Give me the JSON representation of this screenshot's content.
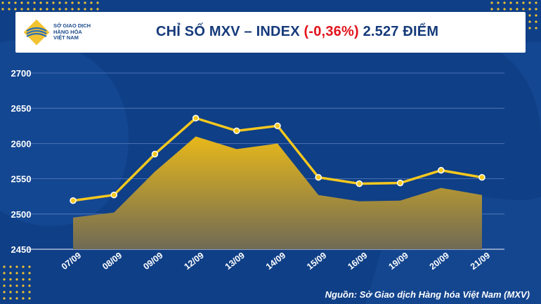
{
  "header": {
    "logo_lines": [
      "SỞ GIAO DỊCH",
      "HÀNG HÓA",
      "VIỆT NAM"
    ],
    "title_prefix": "CHỈ SỐ MXV – INDEX ",
    "title_change": "(-0,36%)",
    "title_suffix": " 2.527 ĐIỂM"
  },
  "source": "Nguồn: Sở Giao dịch Hàng hóa Việt Nam (MXV)",
  "colors": {
    "background": "#0f3f86",
    "line": "#f7c81e",
    "area_top": "#e8b81a",
    "area_bottom": "#7a6d4a",
    "negative": "#e1141c"
  },
  "chart_data": {
    "type": "line",
    "categories": [
      "07/09",
      "08/09",
      "09/09",
      "12/09",
      "13/09",
      "14/09",
      "15/09",
      "16/09",
      "19/09",
      "20/09",
      "21/09"
    ],
    "series": [
      {
        "values": [
          2519,
          2527,
          2585,
          2636,
          2618,
          2625,
          2552,
          2543,
          2544,
          2562,
          2552
        ]
      },
      {
        "values": [
          2495,
          2502,
          2560,
          2610,
          2592,
          2600,
          2527,
          2518,
          2519,
          2537,
          2527
        ]
      }
    ],
    "yticks": [
      2450,
      2500,
      2550,
      2600,
      2650,
      2700
    ],
    "ylim": [
      2450,
      2700
    ],
    "grid": true
  }
}
